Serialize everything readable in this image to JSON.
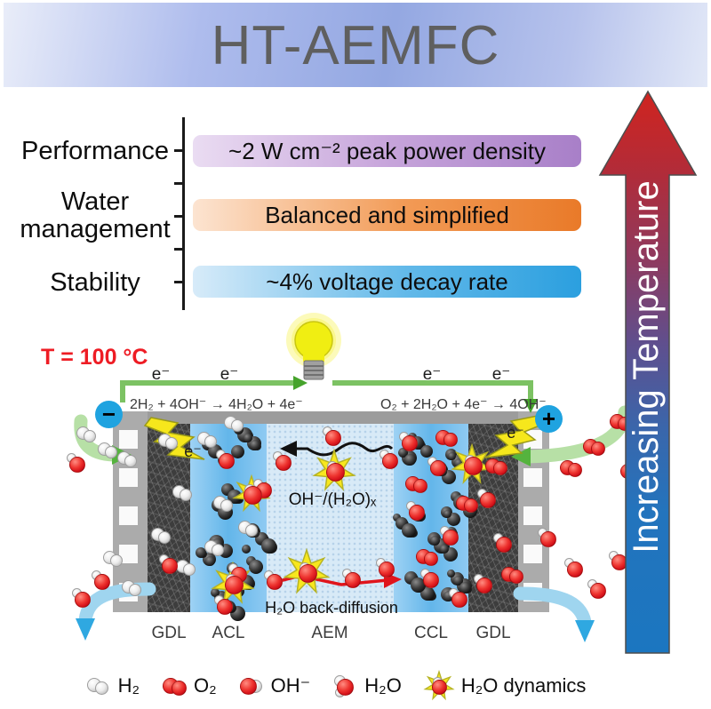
{
  "title": "HT-AEMFC",
  "metrics": {
    "rows": [
      {
        "id": "performance",
        "label": "Performance",
        "value": "~2 W cm⁻² peak power density"
      },
      {
        "id": "water-management",
        "label": "Water management",
        "label_line1": "Water",
        "label_line2": "management",
        "value": "Balanced and simplified"
      },
      {
        "id": "stability",
        "label": "Stability",
        "value": "~4% voltage decay rate"
      }
    ]
  },
  "temperature_arrow": {
    "label": "Increasing Temperature"
  },
  "schematic": {
    "temperature": "T = 100 °C",
    "electron_label": "e⁻",
    "anode_reaction": "2H₂ + 4OH⁻ → 4H₂O + 4e⁻",
    "cathode_reaction": "O₂ + 2H₂O + 4e⁻ → 4OH⁻",
    "anode_terminal": "−",
    "cathode_terminal": "+",
    "membrane_transport": "OH⁻/(H₂O)ₓ",
    "back_diffusion": "H₂O back-diffusion",
    "layer_labels": [
      "GDL",
      "ACL",
      "AEM",
      "CCL",
      "GDL"
    ]
  },
  "legend": {
    "items": [
      {
        "icon": "h2-molecule-icon",
        "label": "H₂"
      },
      {
        "icon": "o2-molecule-icon",
        "label": "O₂"
      },
      {
        "icon": "oh-ion-icon",
        "label": "OH⁻"
      },
      {
        "icon": "h2o-molecule-icon",
        "label": "H₂O"
      },
      {
        "icon": "h2o-dynamics-star-icon",
        "label": "H₂O dynamics"
      }
    ]
  },
  "colors": {
    "banner_blue": "#94a8e2",
    "title_gray": "#5f5f5f",
    "performance_pill": "#a87fc8",
    "water_pill": "#e97a29",
    "stability_pill": "#2b9fdf",
    "temp_arrow_top_red": "#cc2320",
    "temp_arrow_bottom_blue": "#1b76c0",
    "temperature_text_red": "#ee1c24",
    "wire_green": "#7cc263",
    "terminal_blue": "#1fa3e0",
    "star_yellow": "#f8e71e",
    "molecule_red": "#e8212a",
    "molecule_white": "#f2f2f2",
    "carbon_black": "#121212"
  }
}
